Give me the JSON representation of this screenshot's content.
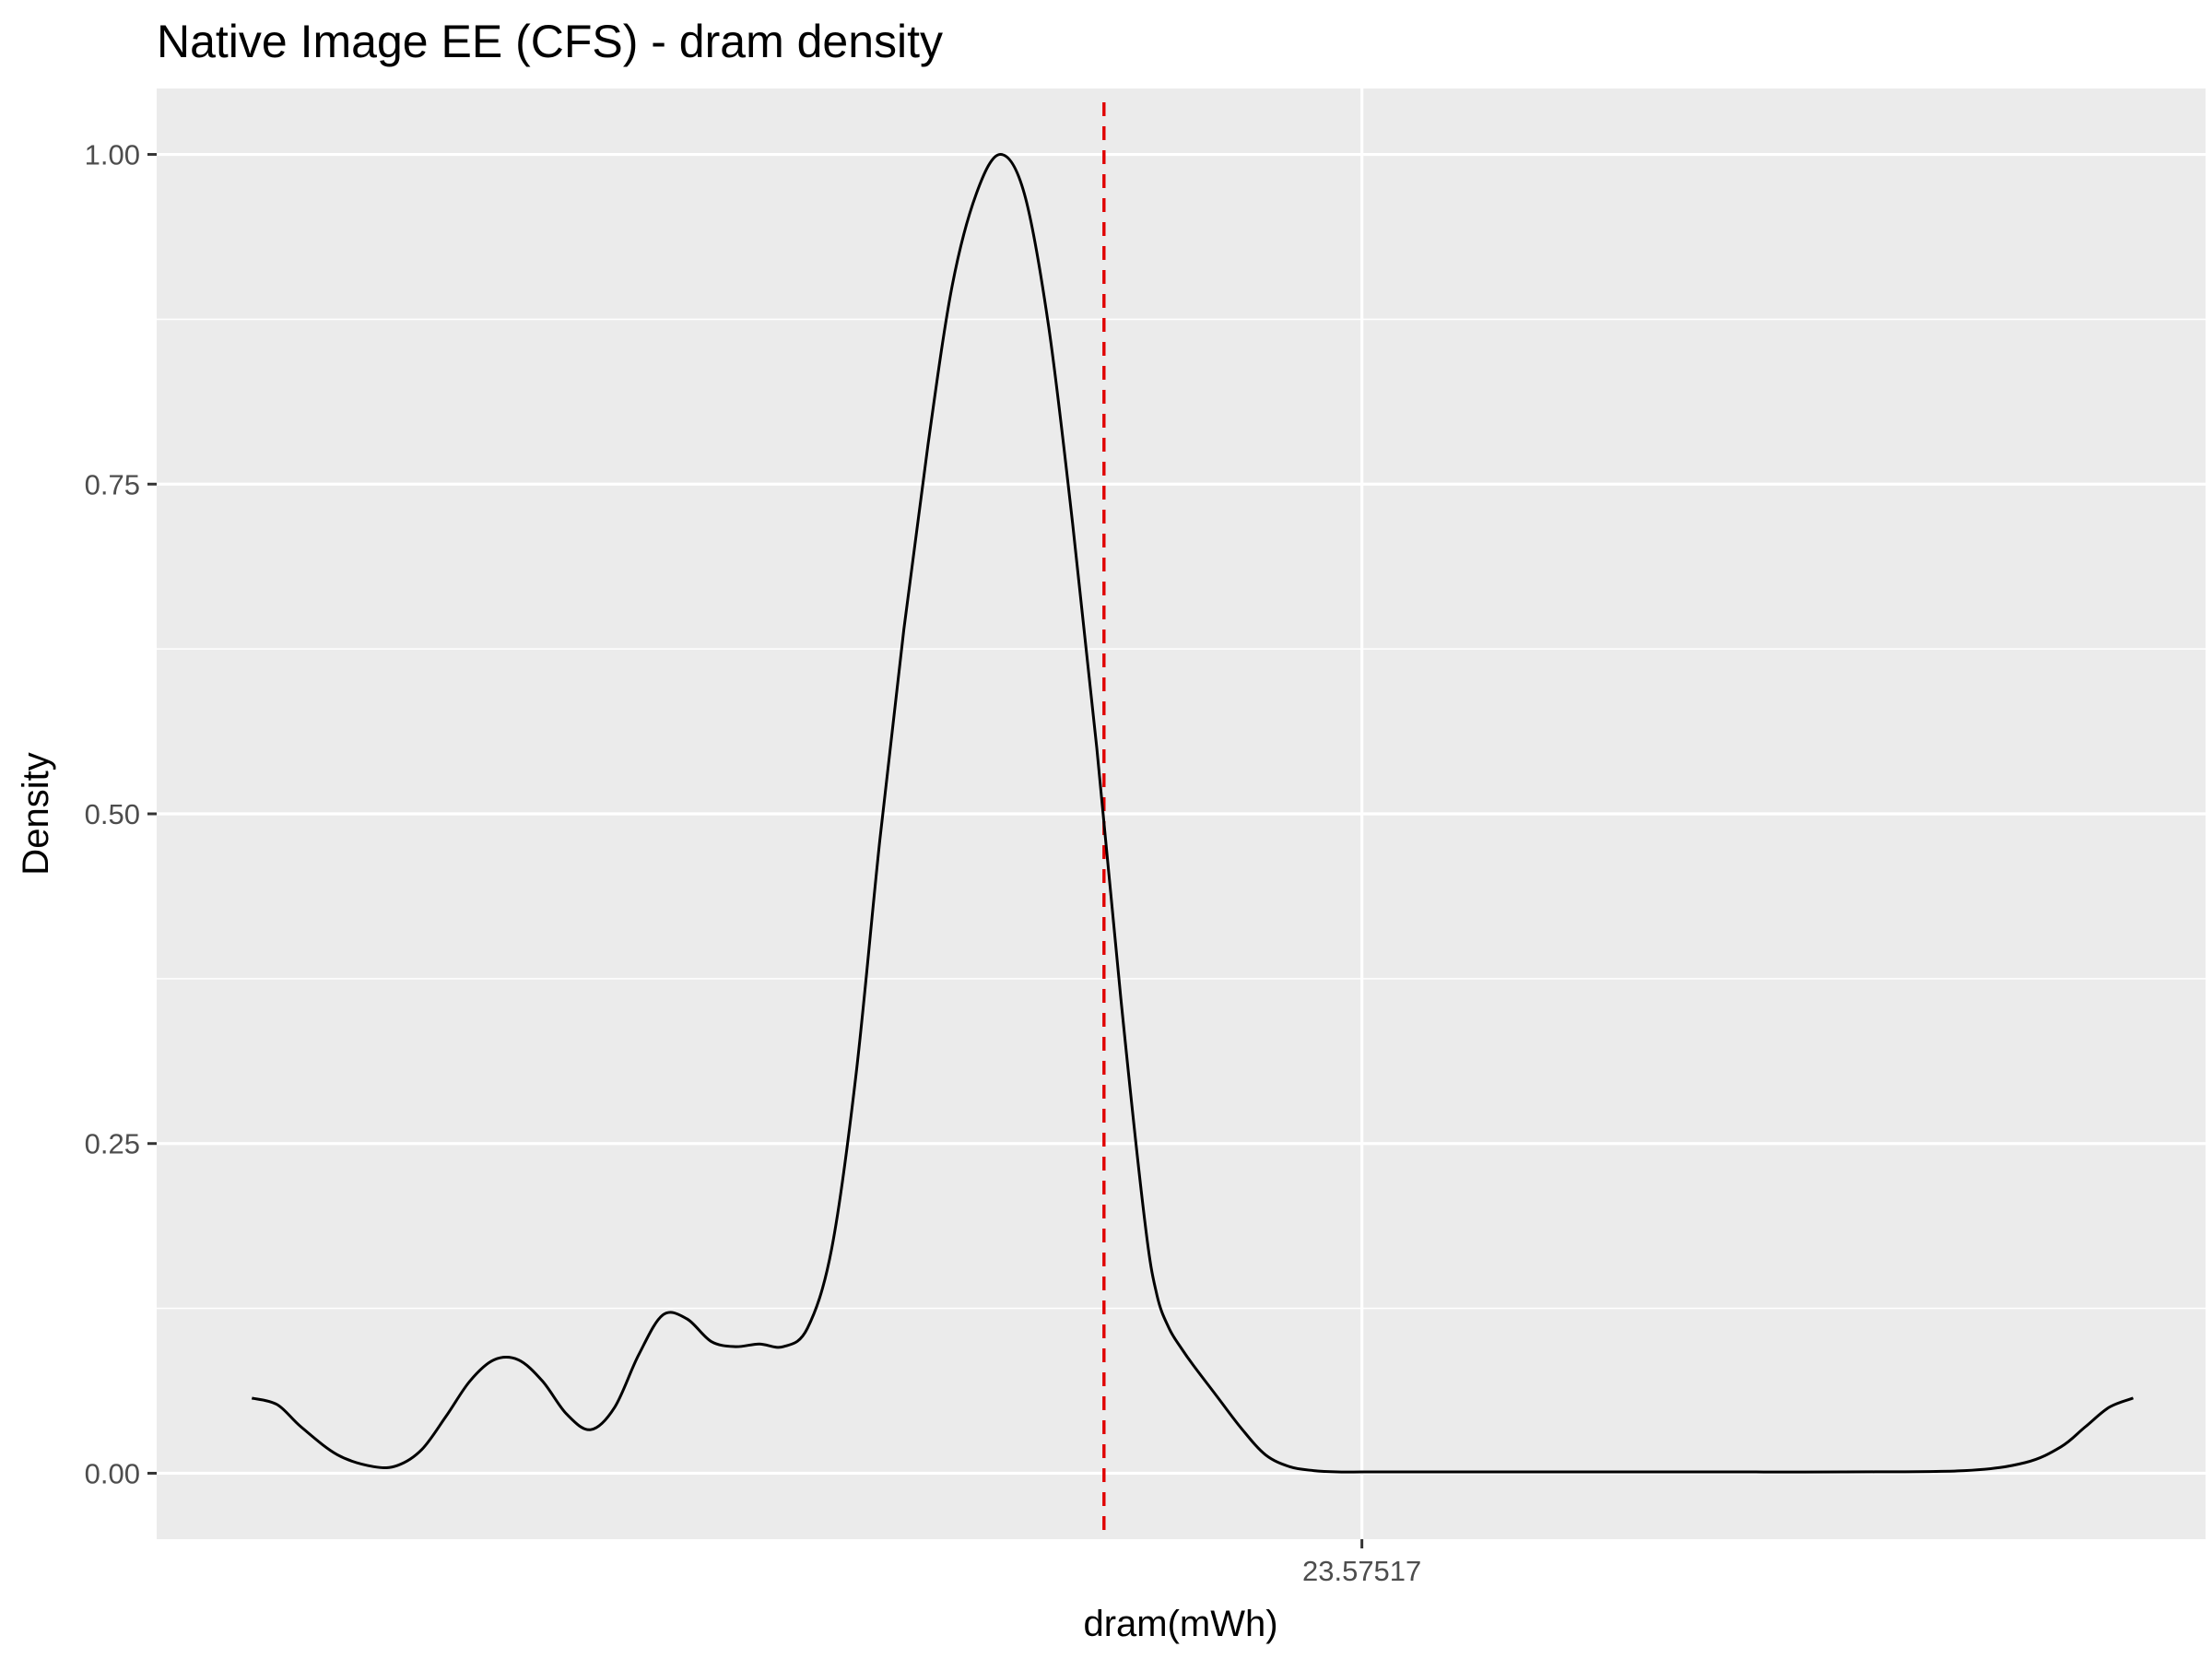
{
  "chart_data": {
    "type": "area",
    "title": "Native Image EE (CFS) - dram density",
    "xlabel": "dram(mWh)",
    "ylabel": "Density",
    "x_ticks": [
      {
        "value": 0,
        "label": "23.57517"
      }
    ],
    "x_minor_ticks": [],
    "y_ticks": [
      {
        "value": 0.0,
        "label": "0.00"
      },
      {
        "value": 0.25,
        "label": "0.25"
      },
      {
        "value": 0.5,
        "label": "0.50"
      },
      {
        "value": 0.75,
        "label": "0.75"
      },
      {
        "value": 1.0,
        "label": "1.00"
      }
    ],
    "y_minor_ticks": [
      0.125,
      0.375,
      0.625,
      0.875
    ],
    "xlim": [
      -1.0,
      0.7
    ],
    "ylim": [
      -0.05,
      1.05
    ],
    "grid": true,
    "background": "#ebebeb",
    "line_color": "#000000",
    "reference_line": {
      "x": -0.214,
      "color": "#e00000",
      "style": "dashed"
    },
    "series": [
      {
        "x": [
          -0.921,
          -0.9,
          -0.88,
          -0.85,
          -0.82,
          -0.8,
          -0.78,
          -0.76,
          -0.74,
          -0.72,
          -0.7,
          -0.68,
          -0.66,
          -0.64,
          -0.62,
          -0.6,
          -0.58,
          -0.56,
          -0.54,
          -0.52,
          -0.5,
          -0.48,
          -0.46,
          -0.44,
          -0.42,
          -0.4,
          -0.38,
          -0.36,
          -0.34,
          -0.32,
          -0.3,
          -0.28,
          -0.26,
          -0.24,
          -0.22,
          -0.2,
          -0.18,
          -0.17,
          -0.16,
          -0.15,
          -0.14,
          -0.12,
          -0.1,
          -0.08,
          -0.06,
          -0.04,
          -0.02,
          0.0,
          0.02,
          0.04,
          0.06,
          0.08,
          0.1,
          0.12,
          0.15,
          0.2,
          0.3,
          0.4,
          0.5,
          0.55,
          0.58,
          0.6,
          0.62,
          0.64
        ],
        "y": [
          0.057,
          0.052,
          0.035,
          0.014,
          0.005,
          0.006,
          0.018,
          0.043,
          0.07,
          0.086,
          0.086,
          0.07,
          0.045,
          0.033,
          0.05,
          0.09,
          0.12,
          0.117,
          0.1,
          0.096,
          0.098,
          0.096,
          0.11,
          0.17,
          0.3,
          0.48,
          0.64,
          0.78,
          0.9,
          0.97,
          1.0,
          0.97,
          0.87,
          0.72,
          0.55,
          0.36,
          0.19,
          0.135,
          0.11,
          0.095,
          0.082,
          0.058,
          0.034,
          0.014,
          0.005,
          0.002,
          0.001,
          0.001,
          0.001,
          0.001,
          0.001,
          0.001,
          0.001,
          0.001,
          0.001,
          0.001,
          0.001,
          0.001,
          0.002,
          0.008,
          0.02,
          0.035,
          0.05,
          0.057
        ]
      }
    ]
  }
}
